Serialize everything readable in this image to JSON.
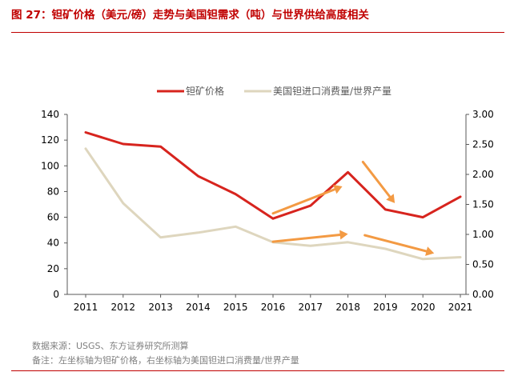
{
  "header": {
    "title": "图 27：钽矿价格（美元/磅）走势与美国钽需求（吨）与世界供给高度相关"
  },
  "footer": {
    "source": "数据来源：USGS、东方证券研究所测算",
    "note": "备注：左坐标轴为钽矿价格，右坐标轴为美国钽进口消费量/世界产量"
  },
  "chart_data": {
    "type": "line",
    "categories": [
      "2011",
      "2012",
      "2013",
      "2014",
      "2015",
      "2016",
      "2017",
      "2018",
      "2019",
      "2020",
      "2021"
    ],
    "series": [
      {
        "name": "钽矿价格",
        "axis": "left",
        "color": "#d7241e",
        "values": [
          126,
          117,
          115,
          92,
          78,
          59,
          69,
          95,
          66,
          60,
          76
        ]
      },
      {
        "name": "美国钽进口消费量/世界产量",
        "axis": "right",
        "color": "#ded6be",
        "values": [
          2.43,
          1.52,
          0.95,
          1.03,
          1.13,
          0.87,
          0.81,
          0.87,
          0.76,
          0.59,
          0.62
        ]
      }
    ],
    "y_left": {
      "min": 0,
      "max": 140,
      "step": 20
    },
    "y_right": {
      "min": 0,
      "max": 3,
      "step": 0.5,
      "decimals": 2
    },
    "legend_position": "top",
    "grid": false,
    "annotations": [
      {
        "type": "arrow",
        "color": "#f39a43",
        "from": {
          "x": "2016",
          "y": 63
        },
        "to": {
          "x": "2017.85",
          "y": 84
        }
      },
      {
        "type": "arrow",
        "color": "#f39a43",
        "from": {
          "x": "2018.4",
          "y": 103
        },
        "to": {
          "x": "2019.25",
          "y": 71
        }
      },
      {
        "type": "arrow",
        "color": "#f39a43",
        "from": {
          "x": "2016",
          "y": 41
        },
        "to": {
          "x": "2018",
          "y": 47
        }
      },
      {
        "type": "arrow",
        "color": "#f39a43",
        "from": {
          "x": "2018.45",
          "y": 46
        },
        "to": {
          "x": "2020.3",
          "y": 32
        }
      }
    ]
  }
}
